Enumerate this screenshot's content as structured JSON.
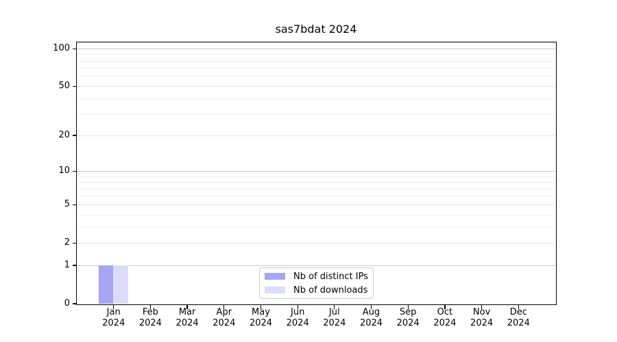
{
  "chart_data": {
    "type": "bar",
    "title": "sas7bdat 2024",
    "x_year": "2024",
    "categories": [
      "Jan",
      "Feb",
      "Mar",
      "Apr",
      "May",
      "Jun",
      "Jul",
      "Aug",
      "Sep",
      "Oct",
      "Nov",
      "Dec"
    ],
    "series": [
      {
        "name": "Nb of distinct IPs",
        "color": "#a6a6f2",
        "values": [
          1,
          0,
          0,
          0,
          0,
          0,
          0,
          0,
          0,
          0,
          0,
          0
        ]
      },
      {
        "name": "Nb of downloads",
        "color": "#dcdcf8",
        "values": [
          1,
          0,
          0,
          0,
          0,
          0,
          0,
          0,
          0,
          0,
          0,
          0
        ]
      }
    ],
    "y_axis": {
      "scale": "log10(value+1)",
      "tick_labels": [
        100,
        50,
        20,
        10,
        5,
        2,
        1,
        0
      ],
      "decade_gridlines": [
        1,
        10,
        100
      ],
      "mid_gridlines": [
        2,
        5,
        20,
        50
      ],
      "minor_gridlines": [
        3,
        4,
        6,
        7,
        8,
        9,
        30,
        40,
        60,
        70,
        80,
        90
      ],
      "ylim": [
        0,
        112
      ]
    },
    "legend": {
      "entries": [
        "Nb of distinct IPs",
        "Nb of downloads"
      ],
      "position": "lower center"
    },
    "grid": true,
    "colors": {
      "decade_grid": "#c8c8c8",
      "mid_grid": "#e4e4e4",
      "minor_grid": "#eeeeee",
      "spine": "#000000",
      "text": "#000000",
      "legend_border": "#cccccc"
    }
  }
}
